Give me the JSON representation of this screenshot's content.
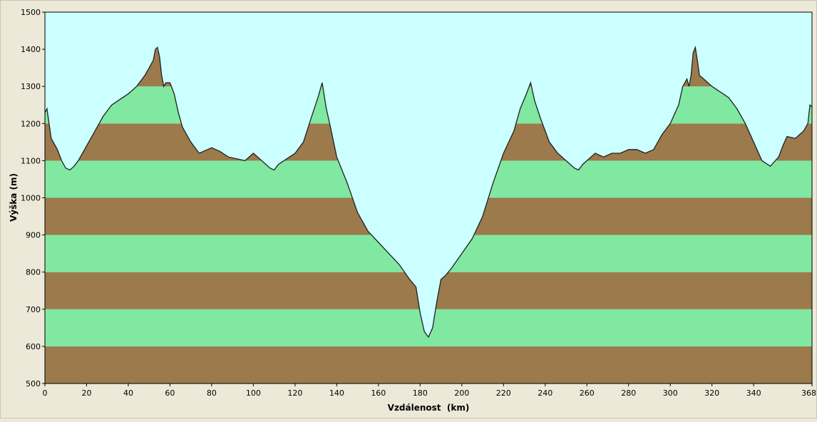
{
  "chart_data": {
    "type": "area",
    "xlabel": "Vzdálenost  (km)",
    "ylabel": "Výška (m)",
    "xlim": [
      0,
      368
    ],
    "ylim": [
      500,
      1500
    ],
    "x_ticks": [
      0,
      20,
      40,
      60,
      80,
      100,
      120,
      140,
      160,
      180,
      200,
      220,
      240,
      260,
      280,
      300,
      320,
      340,
      368
    ],
    "y_ticks": [
      500,
      600,
      700,
      800,
      900,
      1000,
      1100,
      1200,
      1300,
      1400,
      1500
    ],
    "grid": false,
    "legend": "none",
    "band_step": 100,
    "colors": {
      "sky": "#ccffff",
      "band_brown": "#9c7a4c",
      "band_green": "#80e8a0",
      "outline": "#202020",
      "frame": "#ece9d8"
    },
    "series": [
      {
        "x": [
          0,
          1,
          2,
          3,
          4,
          6,
          8,
          10,
          12,
          14,
          16,
          20,
          24,
          28,
          32,
          36,
          40,
          44,
          48,
          50,
          52,
          53,
          54,
          55,
          56,
          57,
          58,
          60,
          62,
          64,
          66,
          68,
          70,
          74,
          78,
          80,
          84,
          88,
          92,
          96,
          100,
          104,
          108,
          110,
          112,
          116,
          120,
          124,
          128,
          131,
          133,
          135,
          137,
          140,
          145,
          150,
          155,
          160,
          165,
          170,
          175,
          178,
          180,
          182,
          184,
          186,
          188,
          190,
          192,
          195,
          200,
          205,
          210,
          215,
          220,
          225,
          228,
          231,
          233,
          235,
          238,
          242,
          246,
          250,
          254,
          256,
          258,
          260,
          264,
          268,
          272,
          276,
          280,
          284,
          288,
          292,
          296,
          300,
          304,
          306,
          308,
          309,
          310,
          311,
          312,
          313,
          314,
          316,
          320,
          324,
          328,
          332,
          336,
          340,
          344,
          348,
          352,
          354,
          356,
          360,
          362,
          364,
          366,
          367,
          368
        ],
        "y": [
          1230,
          1240,
          1200,
          1160,
          1150,
          1130,
          1100,
          1080,
          1075,
          1085,
          1100,
          1140,
          1180,
          1220,
          1250,
          1265,
          1280,
          1300,
          1330,
          1350,
          1370,
          1400,
          1405,
          1380,
          1330,
          1300,
          1310,
          1310,
          1280,
          1230,
          1190,
          1170,
          1150,
          1120,
          1130,
          1135,
          1125,
          1110,
          1105,
          1100,
          1120,
          1100,
          1080,
          1075,
          1090,
          1105,
          1120,
          1150,
          1220,
          1270,
          1310,
          1240,
          1190,
          1110,
          1040,
          960,
          910,
          880,
          850,
          820,
          780,
          760,
          690,
          640,
          625,
          650,
          720,
          780,
          790,
          810,
          850,
          890,
          950,
          1040,
          1120,
          1180,
          1240,
          1280,
          1310,
          1260,
          1210,
          1150,
          1120,
          1100,
          1080,
          1075,
          1090,
          1100,
          1120,
          1110,
          1120,
          1120,
          1130,
          1130,
          1120,
          1130,
          1170,
          1200,
          1250,
          1300,
          1320,
          1300,
          1330,
          1390,
          1405,
          1370,
          1330,
          1320,
          1300,
          1285,
          1270,
          1240,
          1200,
          1150,
          1100,
          1085,
          1110,
          1140,
          1165,
          1160,
          1170,
          1180,
          1200,
          1250,
          1245
        ]
      }
    ]
  }
}
